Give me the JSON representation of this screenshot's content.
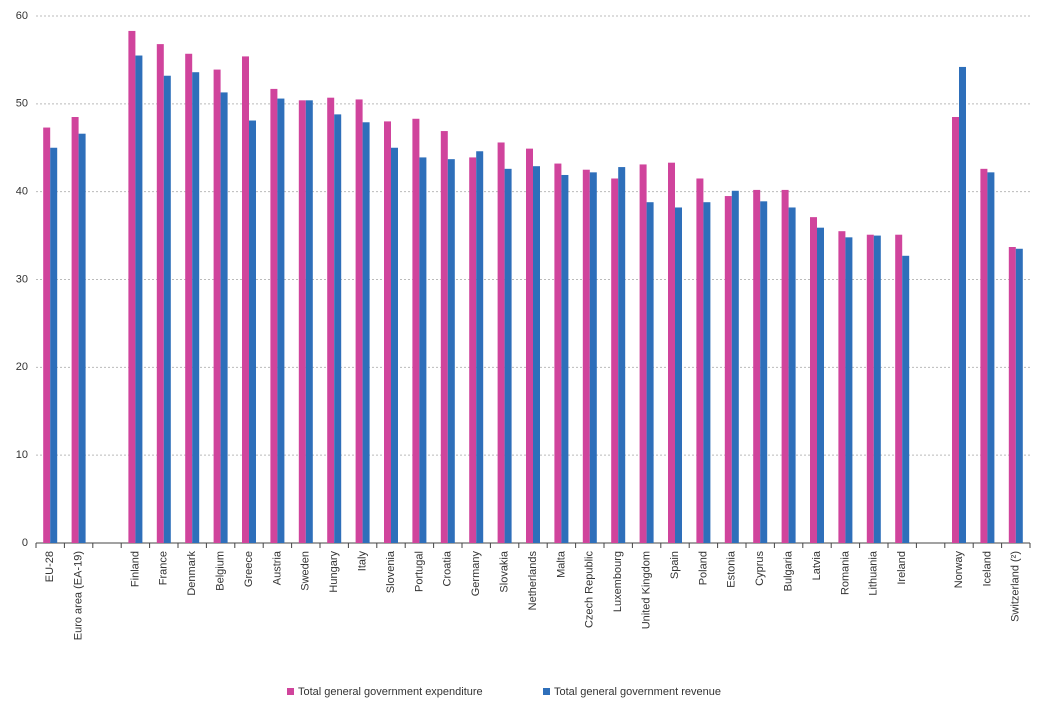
{
  "chart_data": {
    "type": "bar",
    "categories": [
      "EU-28",
      "Euro area (EA-19)",
      null,
      "Finland",
      "France",
      "Denmark",
      "Belgium",
      "Greece",
      "Austria",
      "Sweden",
      "Hungary",
      "Italy",
      "Slovenia",
      "Portugal",
      "Croatia",
      "Germany",
      "Slovakia",
      "Netherlands",
      "Malta",
      "Czech Republic",
      "Luxembourg",
      "United Kingdom",
      "Spain",
      "Poland",
      "Estonia",
      "Cyprus",
      "Bulgaria",
      "Latvia",
      "Romania",
      "Lithuania",
      "Ireland",
      null,
      "Norway",
      "Iceland",
      "Switzerland (²)"
    ],
    "series": [
      {
        "name": "Total general government expenditure",
        "color": "#d0449c",
        "values": [
          47.3,
          48.5,
          null,
          58.3,
          56.8,
          55.7,
          53.9,
          55.4,
          51.7,
          50.4,
          50.7,
          50.5,
          48.0,
          48.3,
          46.9,
          43.9,
          45.6,
          44.9,
          43.2,
          42.5,
          41.5,
          43.1,
          43.3,
          41.5,
          39.5,
          40.2,
          40.2,
          37.1,
          35.5,
          35.1,
          35.1,
          null,
          48.5,
          42.6,
          33.7
        ]
      },
      {
        "name": "Total general government revenue",
        "color": "#2e6fba",
        "values": [
          45.0,
          46.6,
          null,
          55.5,
          53.2,
          53.6,
          51.3,
          48.1,
          50.6,
          50.4,
          48.8,
          47.9,
          45.0,
          43.9,
          43.7,
          44.6,
          42.6,
          42.9,
          41.9,
          42.2,
          42.8,
          38.8,
          38.2,
          38.8,
          40.1,
          38.9,
          38.2,
          35.9,
          34.8,
          35.0,
          32.7,
          null,
          54.2,
          42.2,
          33.5
        ]
      }
    ],
    "ylim": [
      0,
      60
    ],
    "yticks": [
      0,
      10,
      20,
      30,
      40,
      50,
      60
    ],
    "grid": true,
    "legend": "bottom"
  }
}
